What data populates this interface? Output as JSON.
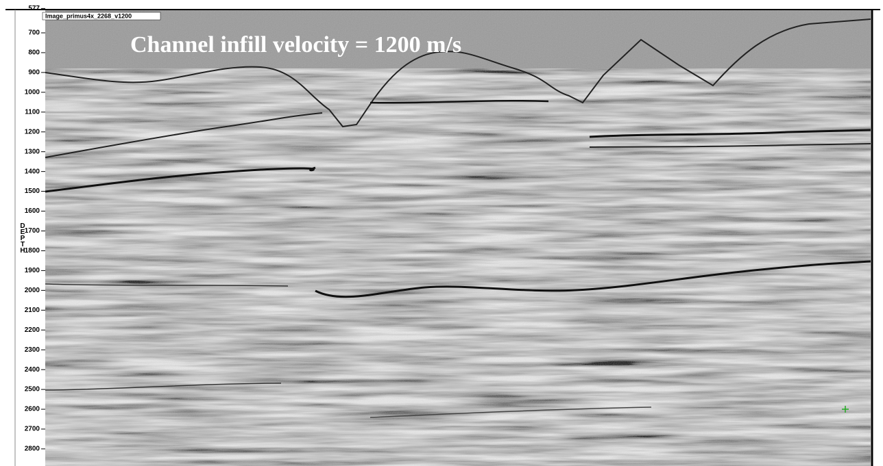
{
  "depth_axis": {
    "label": "DEPTH",
    "ticks": [
      577,
      700,
      800,
      900,
      1000,
      1100,
      1200,
      1300,
      1400,
      1500,
      1600,
      1700,
      1800,
      1900,
      2000,
      2100,
      2200,
      2300,
      2400,
      2500,
      2600,
      2700,
      2800
    ]
  },
  "image": {
    "name": "Image_primus4x_2268_v1200",
    "annotation": "Channel infill velocity = 1200 m/s"
  }
}
